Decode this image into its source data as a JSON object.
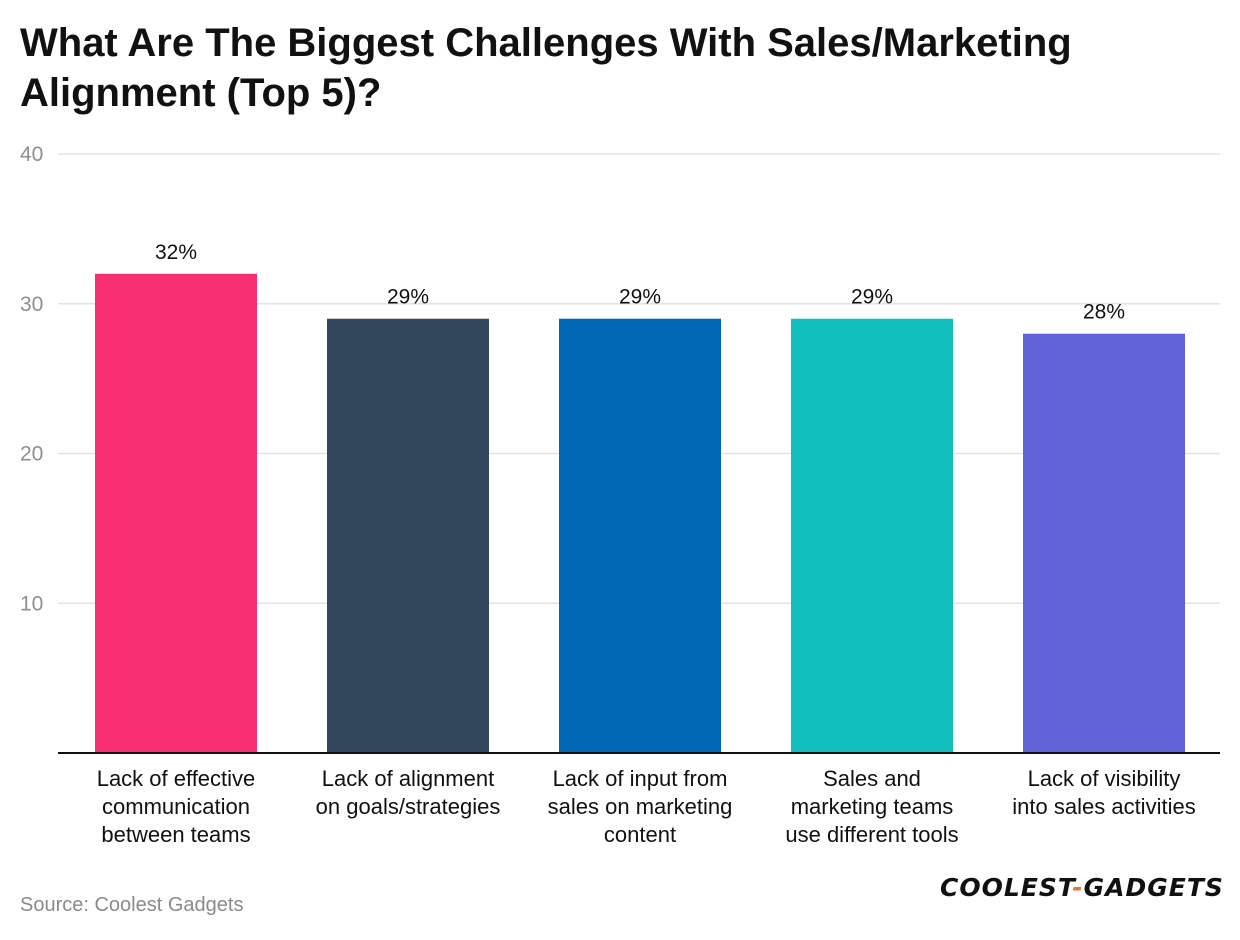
{
  "chart_data": {
    "type": "bar",
    "title": "What Are The Biggest Challenges With Sales/Marketing Alignment (Top 5)?",
    "categories": [
      "Lack of effective communication between teams",
      "Lack of alignment on goals/strategies",
      "Lack of input from sales on marketing content",
      "Sales and marketing teams use different tools",
      "Lack of visibility into sales activities"
    ],
    "category_lines": [
      [
        "Lack of effective",
        "communication",
        "between teams"
      ],
      [
        "Lack of alignment",
        "on goals/strategies"
      ],
      [
        "Lack of input from",
        "sales on marketing",
        "content"
      ],
      [
        "Sales and",
        "marketing teams",
        "use different tools"
      ],
      [
        "Lack of visibility",
        "into sales activities"
      ]
    ],
    "values": [
      32,
      29,
      29,
      29,
      28
    ],
    "data_labels": [
      "32%",
      "29%",
      "29%",
      "29%",
      "28%"
    ],
    "colors": [
      "#f52f72",
      "#32475c",
      "#0068b2",
      "#10bfbe",
      "#5f63d7"
    ],
    "y_ticks": [
      10,
      20,
      30,
      40
    ],
    "ylim": [
      0,
      40
    ],
    "grid": true,
    "xlabel": "",
    "ylabel": ""
  },
  "footer": {
    "source": "Source: Coolest Gadgets",
    "logo_left": "COOLEST",
    "logo_dash": "-",
    "logo_right": "GADGETS"
  }
}
